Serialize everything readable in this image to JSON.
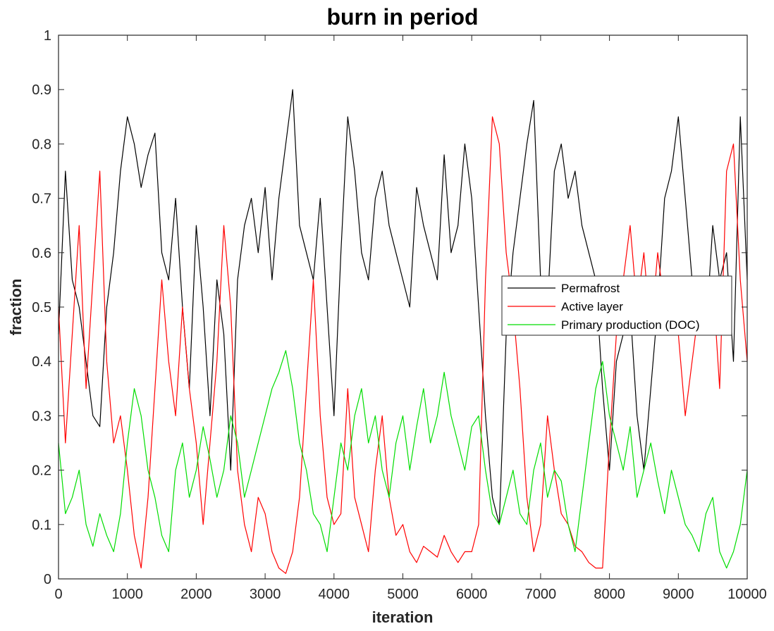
{
  "chart_data": {
    "type": "line",
    "title": "burn in period",
    "xlabel": "iteration",
    "ylabel": "fraction",
    "xlim": [
      0,
      10000
    ],
    "ylim": [
      0,
      1
    ],
    "xticks": [
      0,
      1000,
      2000,
      3000,
      4000,
      5000,
      6000,
      7000,
      8000,
      9000,
      10000
    ],
    "xtick_labels": [
      "0",
      "1000",
      "2000",
      "3000",
      "4000",
      "5000",
      "6000",
      "7000",
      "8000",
      "9000",
      "10000"
    ],
    "yticks": [
      0,
      0.1,
      0.2,
      0.3,
      0.4,
      0.5,
      0.6,
      0.7,
      0.8,
      0.9,
      1
    ],
    "ytick_labels": [
      "0",
      "0.1",
      "0.2",
      "0.3",
      "0.4",
      "0.5",
      "0.6",
      "0.7",
      "0.8",
      "0.9",
      "1"
    ],
    "grid": false,
    "legend_position": "right",
    "series": [
      {
        "name": "Permafrost",
        "color": "#000000",
        "x": [
          0,
          100,
          200,
          300,
          400,
          500,
          600,
          700,
          800,
          900,
          1000,
          1100,
          1200,
          1300,
          1400,
          1500,
          1600,
          1700,
          1800,
          1900,
          2000,
          2100,
          2200,
          2300,
          2400,
          2500,
          2600,
          2700,
          2800,
          2900,
          3000,
          3100,
          3200,
          3300,
          3400,
          3500,
          3600,
          3700,
          3800,
          3900,
          4000,
          4100,
          4200,
          4300,
          4400,
          4500,
          4600,
          4700,
          4800,
          4900,
          5000,
          5100,
          5200,
          5300,
          5400,
          5500,
          5600,
          5700,
          5800,
          5900,
          6000,
          6100,
          6200,
          6300,
          6400,
          6500,
          6600,
          6700,
          6800,
          6900,
          7000,
          7100,
          7200,
          7300,
          7400,
          7500,
          7600,
          7700,
          7800,
          7900,
          8000,
          8100,
          8200,
          8300,
          8400,
          8500,
          8600,
          8700,
          8800,
          8900,
          9000,
          9100,
          9200,
          9300,
          9400,
          9500,
          9600,
          9700,
          9800,
          9900,
          10000
        ],
        "y": [
          0.45,
          0.75,
          0.55,
          0.5,
          0.4,
          0.3,
          0.28,
          0.5,
          0.6,
          0.75,
          0.85,
          0.8,
          0.72,
          0.78,
          0.82,
          0.6,
          0.55,
          0.7,
          0.5,
          0.35,
          0.65,
          0.5,
          0.3,
          0.55,
          0.45,
          0.2,
          0.55,
          0.65,
          0.7,
          0.6,
          0.72,
          0.55,
          0.7,
          0.8,
          0.9,
          0.65,
          0.6,
          0.55,
          0.7,
          0.5,
          0.3,
          0.6,
          0.85,
          0.75,
          0.6,
          0.55,
          0.7,
          0.75,
          0.65,
          0.6,
          0.55,
          0.5,
          0.72,
          0.65,
          0.6,
          0.55,
          0.78,
          0.6,
          0.65,
          0.8,
          0.7,
          0.5,
          0.3,
          0.15,
          0.1,
          0.45,
          0.6,
          0.7,
          0.8,
          0.88,
          0.55,
          0.5,
          0.75,
          0.8,
          0.7,
          0.75,
          0.65,
          0.6,
          0.55,
          0.35,
          0.2,
          0.4,
          0.45,
          0.5,
          0.3,
          0.2,
          0.35,
          0.5,
          0.7,
          0.75,
          0.85,
          0.7,
          0.55,
          0.5,
          0.45,
          0.65,
          0.55,
          0.6,
          0.4,
          0.85,
          0.55
        ]
      },
      {
        "name": "Active layer",
        "color": "#ff0000",
        "x": [
          0,
          100,
          200,
          300,
          400,
          500,
          600,
          700,
          800,
          900,
          1000,
          1100,
          1200,
          1300,
          1400,
          1500,
          1600,
          1700,
          1800,
          1900,
          2000,
          2100,
          2200,
          2300,
          2400,
          2500,
          2600,
          2700,
          2800,
          2900,
          3000,
          3100,
          3200,
          3300,
          3400,
          3500,
          3600,
          3700,
          3800,
          3900,
          4000,
          4100,
          4200,
          4300,
          4400,
          4500,
          4600,
          4700,
          4800,
          4900,
          5000,
          5100,
          5200,
          5300,
          5400,
          5500,
          5600,
          5700,
          5800,
          5900,
          6000,
          6100,
          6200,
          6300,
          6400,
          6500,
          6600,
          6700,
          6800,
          6900,
          7000,
          7100,
          7200,
          7300,
          7400,
          7500,
          7600,
          7700,
          7800,
          7900,
          8000,
          8100,
          8200,
          8300,
          8400,
          8500,
          8600,
          8700,
          8800,
          8900,
          9000,
          9100,
          9200,
          9300,
          9400,
          9500,
          9600,
          9700,
          9800,
          9900,
          10000
        ],
        "y": [
          0.5,
          0.25,
          0.45,
          0.65,
          0.35,
          0.55,
          0.75,
          0.4,
          0.25,
          0.3,
          0.2,
          0.08,
          0.02,
          0.15,
          0.35,
          0.55,
          0.4,
          0.3,
          0.5,
          0.35,
          0.25,
          0.1,
          0.25,
          0.4,
          0.65,
          0.5,
          0.2,
          0.1,
          0.05,
          0.15,
          0.12,
          0.05,
          0.02,
          0.01,
          0.05,
          0.15,
          0.35,
          0.55,
          0.3,
          0.15,
          0.1,
          0.12,
          0.35,
          0.15,
          0.1,
          0.05,
          0.2,
          0.3,
          0.15,
          0.08,
          0.1,
          0.05,
          0.03,
          0.06,
          0.05,
          0.04,
          0.08,
          0.05,
          0.03,
          0.05,
          0.05,
          0.1,
          0.55,
          0.85,
          0.8,
          0.6,
          0.5,
          0.35,
          0.15,
          0.05,
          0.1,
          0.3,
          0.2,
          0.12,
          0.1,
          0.06,
          0.05,
          0.03,
          0.02,
          0.02,
          0.25,
          0.45,
          0.55,
          0.65,
          0.5,
          0.6,
          0.45,
          0.6,
          0.5,
          0.55,
          0.45,
          0.3,
          0.4,
          0.5,
          0.45,
          0.55,
          0.35,
          0.75,
          0.8,
          0.55,
          0.4
        ]
      },
      {
        "name": "Primary production (DOC)",
        "color": "#00dd00",
        "x": [
          0,
          100,
          200,
          300,
          400,
          500,
          600,
          700,
          800,
          900,
          1000,
          1100,
          1200,
          1300,
          1400,
          1500,
          1600,
          1700,
          1800,
          1900,
          2000,
          2100,
          2200,
          2300,
          2400,
          2500,
          2600,
          2700,
          2800,
          2900,
          3000,
          3100,
          3200,
          3300,
          3400,
          3500,
          3600,
          3700,
          3800,
          3900,
          4000,
          4100,
          4200,
          4300,
          4400,
          4500,
          4600,
          4700,
          4800,
          4900,
          5000,
          5100,
          5200,
          5300,
          5400,
          5500,
          5600,
          5700,
          5800,
          5900,
          6000,
          6100,
          6200,
          6300,
          6400,
          6500,
          6600,
          6700,
          6800,
          6900,
          7000,
          7100,
          7200,
          7300,
          7400,
          7500,
          7600,
          7700,
          7800,
          7900,
          8000,
          8100,
          8200,
          8300,
          8400,
          8500,
          8600,
          8700,
          8800,
          8900,
          9000,
          9100,
          9200,
          9300,
          9400,
          9500,
          9600,
          9700,
          9800,
          9900,
          10000
        ],
        "y": [
          0.25,
          0.12,
          0.15,
          0.2,
          0.1,
          0.06,
          0.12,
          0.08,
          0.05,
          0.12,
          0.25,
          0.35,
          0.3,
          0.2,
          0.15,
          0.08,
          0.05,
          0.2,
          0.25,
          0.15,
          0.2,
          0.28,
          0.22,
          0.15,
          0.2,
          0.3,
          0.25,
          0.15,
          0.2,
          0.25,
          0.3,
          0.35,
          0.38,
          0.42,
          0.35,
          0.25,
          0.2,
          0.12,
          0.1,
          0.05,
          0.15,
          0.25,
          0.2,
          0.3,
          0.35,
          0.25,
          0.3,
          0.2,
          0.15,
          0.25,
          0.3,
          0.2,
          0.28,
          0.35,
          0.25,
          0.3,
          0.38,
          0.3,
          0.25,
          0.2,
          0.28,
          0.3,
          0.2,
          0.12,
          0.1,
          0.15,
          0.2,
          0.12,
          0.1,
          0.2,
          0.25,
          0.15,
          0.2,
          0.18,
          0.1,
          0.05,
          0.15,
          0.25,
          0.35,
          0.4,
          0.3,
          0.25,
          0.2,
          0.28,
          0.15,
          0.2,
          0.25,
          0.18,
          0.12,
          0.2,
          0.15,
          0.1,
          0.08,
          0.05,
          0.12,
          0.15,
          0.05,
          0.02,
          0.05,
          0.1,
          0.2
        ]
      }
    ]
  }
}
